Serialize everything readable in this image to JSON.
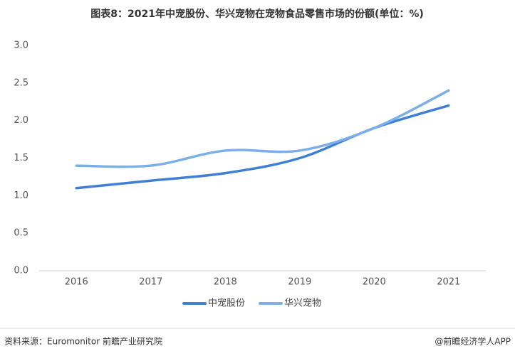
{
  "chart_data": {
    "type": "line",
    "title": "图表8：2021年中宠股份、华兴宠物在宠物食品零售市场的份额(单位：%)",
    "categories": [
      "2016",
      "2017",
      "2018",
      "2019",
      "2020",
      "2021"
    ],
    "series": [
      {
        "name": "中宠股份",
        "color": "#3f7fd4",
        "values": [
          1.1,
          1.2,
          1.3,
          1.5,
          1.9,
          2.2
        ]
      },
      {
        "name": "华兴宠物",
        "color": "#7cafe9",
        "values": [
          1.4,
          1.4,
          1.6,
          1.6,
          1.9,
          2.4
        ]
      }
    ],
    "ylim": [
      0,
      3
    ],
    "yticks": [
      {
        "value": 0,
        "label": "0.0"
      },
      0.5,
      {
        "value": 1,
        "label": "1.0"
      },
      1.5,
      {
        "value": 2,
        "label": "2.0"
      },
      2.5,
      {
        "value": 3,
        "label": "3.0"
      }
    ],
    "grid": false,
    "legend": "bottom",
    "source": "资料来源：Euromonitor 前瞻产业研究院",
    "credit": "@前瞻经济学人APP"
  }
}
